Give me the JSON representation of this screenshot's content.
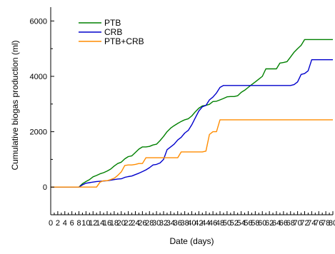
{
  "chart_data": {
    "type": "line",
    "xlabel": "Date (days)",
    "ylabel": "Cumulative biogas production (ml)",
    "xlim": [
      0,
      80
    ],
    "ylim": [
      -1000,
      6500
    ],
    "x_ticks": [
      0,
      2,
      4,
      6,
      8,
      10,
      12,
      14,
      16,
      18,
      20,
      22,
      24,
      26,
      28,
      30,
      32,
      34,
      36,
      38,
      40,
      42,
      44,
      46,
      48,
      50,
      52,
      54,
      56,
      58,
      60,
      62,
      64,
      66,
      68,
      70,
      72,
      74,
      76,
      78,
      80
    ],
    "x_tick_labels": [
      "0",
      "2",
      "4",
      "6",
      "8",
      "10",
      "12",
      "14",
      "16",
      "18",
      "20",
      "22",
      "24",
      "26",
      "28",
      "30",
      "32",
      "34",
      "36",
      "38",
      "40",
      "42",
      "44",
      "46",
      "48",
      "50",
      "52",
      "54",
      "56",
      "58",
      "60",
      "62",
      "64",
      "66",
      "68",
      "70",
      "72",
      "74",
      "76",
      "78",
      "80"
    ],
    "y_ticks": [
      0,
      2000,
      4000,
      6000
    ],
    "y_tick_labels": [
      "0",
      "2000",
      "4000",
      "6000"
    ],
    "grid": false,
    "legend_position": "top-left",
    "series": [
      {
        "name": "PTB",
        "color": "#008000",
        "x": [
          0,
          8,
          9,
          10,
          11,
          12,
          13,
          14,
          15,
          16,
          17,
          18,
          19,
          20,
          21,
          22,
          23,
          24,
          25,
          26,
          27,
          28,
          29,
          30,
          31,
          32,
          33,
          34,
          35,
          36,
          37,
          38,
          39,
          40,
          41,
          42,
          43,
          44,
          45,
          46,
          47,
          48,
          49,
          50,
          51,
          52,
          53,
          54,
          55,
          56,
          57,
          58,
          59,
          60,
          61,
          62,
          63,
          64,
          65,
          66,
          67,
          68,
          69,
          70,
          71,
          72,
          73,
          74,
          75,
          76,
          77,
          78,
          79,
          80
        ],
        "y": [
          0,
          0,
          120,
          200,
          270,
          370,
          420,
          480,
          520,
          580,
          650,
          760,
          850,
          900,
          1020,
          1100,
          1130,
          1250,
          1370,
          1450,
          1450,
          1470,
          1520,
          1550,
          1680,
          1830,
          2000,
          2130,
          2220,
          2300,
          2370,
          2430,
          2470,
          2570,
          2720,
          2850,
          2930,
          2950,
          2990,
          3090,
          3100,
          3150,
          3200,
          3260,
          3270,
          3270,
          3300,
          3420,
          3500,
          3600,
          3700,
          3800,
          3900,
          4000,
          4270,
          4270,
          4270,
          4270,
          4480,
          4500,
          4530,
          4700,
          4870,
          5000,
          5120,
          5330,
          5330,
          5330,
          5330,
          5330,
          5330,
          5330,
          5330,
          5330
        ]
      },
      {
        "name": "CRB",
        "color": "#0000cc",
        "x": [
          0,
          8,
          9,
          10,
          11,
          12,
          13,
          14,
          15,
          16,
          17,
          18,
          19,
          20,
          21,
          22,
          23,
          24,
          25,
          26,
          27,
          28,
          29,
          30,
          31,
          32,
          33,
          34,
          35,
          36,
          37,
          38,
          39,
          40,
          41,
          42,
          43,
          44,
          45,
          46,
          47,
          48,
          49,
          50,
          55,
          60,
          65,
          68,
          69,
          70,
          71,
          72,
          73,
          74,
          75,
          76,
          77,
          78,
          79,
          80
        ],
        "y": [
          0,
          0,
          80,
          140,
          160,
          180,
          200,
          210,
          220,
          230,
          250,
          270,
          290,
          300,
          350,
          380,
          400,
          450,
          500,
          560,
          620,
          700,
          800,
          820,
          870,
          1000,
          1350,
          1450,
          1550,
          1700,
          1800,
          1950,
          2050,
          2250,
          2500,
          2750,
          2900,
          2950,
          3150,
          3250,
          3400,
          3600,
          3670,
          3670,
          3670,
          3670,
          3670,
          3670,
          3700,
          3800,
          4070,
          4100,
          4200,
          4600,
          4600,
          4600,
          4600,
          4600,
          4600,
          4600
        ]
      },
      {
        "name": "PTB+CRB",
        "color": "#ff8c00",
        "x": [
          0,
          12,
          13,
          14,
          15,
          16,
          17,
          18,
          19,
          20,
          21,
          22,
          23,
          24,
          25,
          26,
          27,
          28,
          29,
          30,
          31,
          32,
          33,
          34,
          35,
          36,
          37,
          38,
          39,
          40,
          41,
          42,
          43,
          44,
          45,
          46,
          47,
          48,
          49,
          50,
          55,
          60,
          65,
          70,
          75,
          80
        ],
        "y": [
          0,
          0,
          0,
          180,
          230,
          230,
          270,
          320,
          420,
          550,
          780,
          800,
          800,
          820,
          850,
          850,
          1060,
          1060,
          1060,
          1060,
          1060,
          1060,
          1060,
          1060,
          1060,
          1060,
          1270,
          1270,
          1270,
          1270,
          1270,
          1270,
          1270,
          1300,
          1900,
          2000,
          2000,
          2430,
          2430,
          2430,
          2430,
          2430,
          2430,
          2430,
          2430,
          2430
        ]
      }
    ]
  }
}
